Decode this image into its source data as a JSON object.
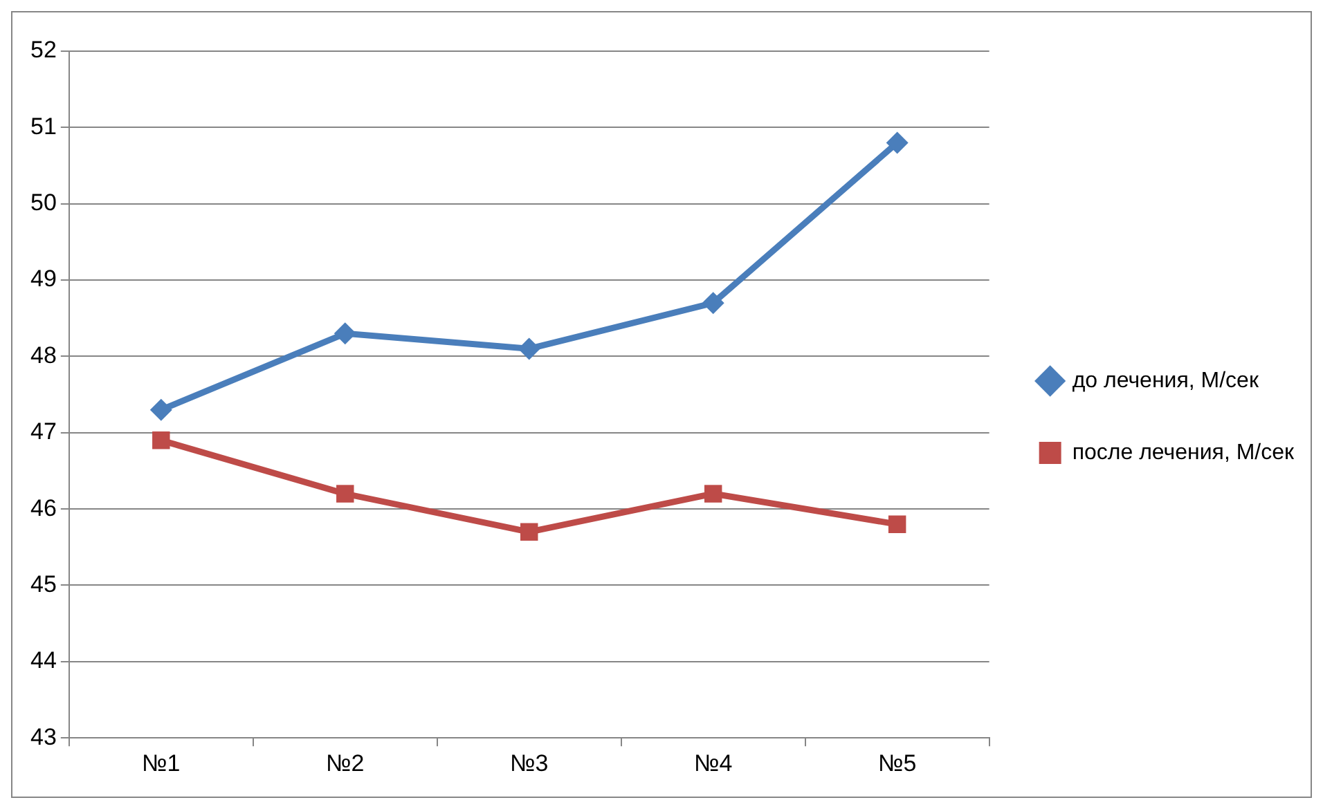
{
  "chart_data": {
    "type": "line",
    "categories": [
      "№1",
      "№2",
      "№3",
      "№4",
      "№5"
    ],
    "series": [
      {
        "name": "до лечения, М/сек",
        "color": "#4a7ebb",
        "marker": "diamond",
        "values": [
          47.3,
          48.3,
          48.1,
          48.7,
          50.8
        ]
      },
      {
        "name": "после лечения, М/сек",
        "color": "#be4b48",
        "marker": "square",
        "values": [
          46.9,
          46.2,
          45.7,
          46.2,
          45.8
        ]
      }
    ],
    "ylim": [
      43,
      52
    ],
    "yticks": [
      43,
      44,
      45,
      46,
      47,
      48,
      49,
      50,
      51,
      52
    ],
    "grid": "y",
    "legend": "right",
    "line_style": "solid"
  }
}
